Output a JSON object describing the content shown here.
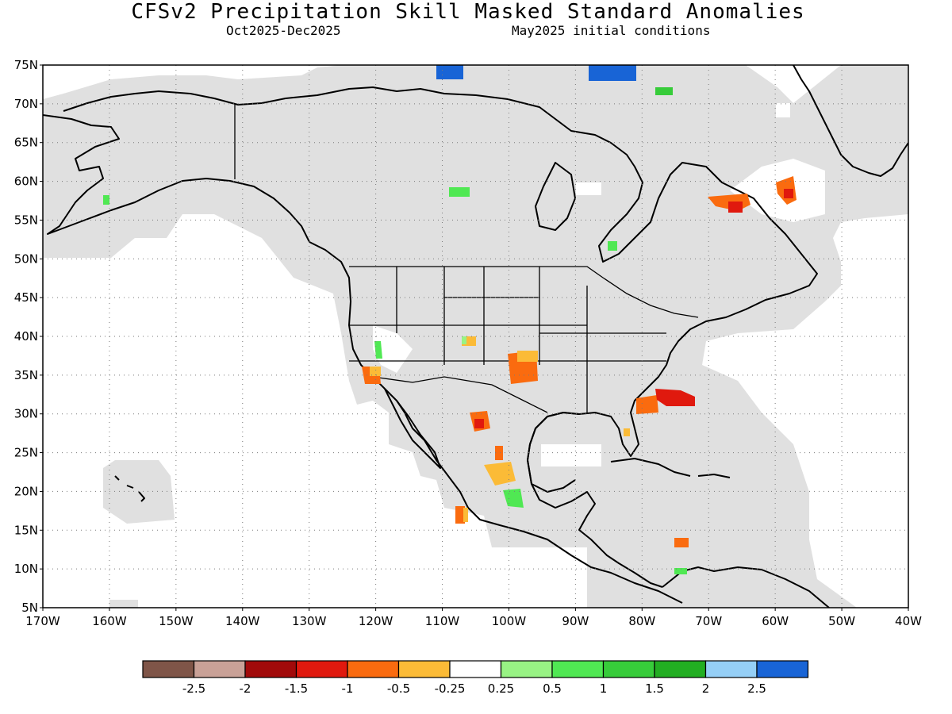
{
  "header": {
    "title": "CFSv2 Precipitation Skill Masked Standard Anomalies",
    "period": "Oct2025-Dec2025",
    "init": "May2025 initial conditions"
  },
  "axes": {
    "lat_labels": [
      "75N",
      "70N",
      "65N",
      "60N",
      "55N",
      "50N",
      "45N",
      "40N",
      "35N",
      "30N",
      "25N",
      "20N",
      "15N",
      "10N",
      "5N"
    ],
    "lon_labels": [
      "170W",
      "160W",
      "150W",
      "140W",
      "130W",
      "120W",
      "110W",
      "100W",
      "90W",
      "80W",
      "70W",
      "60W",
      "50W",
      "40W"
    ]
  },
  "colorbar": {
    "bins": [
      {
        "color": "#7f5548",
        "value": "< -2.5"
      },
      {
        "color": "#c9a197",
        "value": "-2.5 to -2"
      },
      {
        "color": "#a10a0a",
        "value": "-2 to -1.5"
      },
      {
        "color": "#e0190e",
        "value": "-1.5 to -1"
      },
      {
        "color": "#fa6b0f",
        "value": "-1 to -0.5"
      },
      {
        "color": "#fbbb37",
        "value": "-0.5 to -0.25"
      },
      {
        "color": "#ffffff",
        "value": "-0.25 to 0.25"
      },
      {
        "color": "#98f384",
        "value": "0.25 to 0.5"
      },
      {
        "color": "#50e853",
        "value": "0.5 to 1"
      },
      {
        "color": "#37cc3a",
        "value": "1 to 1.5"
      },
      {
        "color": "#22ae22",
        "value": "1.5 to 2"
      },
      {
        "color": "#95cff6",
        "value": "2 to 2.5"
      },
      {
        "color": "#1864d6",
        "value": "> 2.5"
      }
    ],
    "labels": [
      "-2.5",
      "-2",
      "-1.5",
      "-1",
      "-0.5",
      "-0.25",
      "0.25",
      "0.5",
      "1",
      "1.5",
      "2",
      "2.5"
    ]
  },
  "map": {
    "mask_color": "#e0e0e0",
    "anomaly_patches": [
      {
        "region": "Gulf Stream off Carolinas",
        "value": -1.5
      },
      {
        "region": "Southern Plains",
        "value": -1
      },
      {
        "region": "Northern Mexico Sierra Madre",
        "value": -1.5
      },
      {
        "region": "Central Mexico",
        "value": -0.25
      },
      {
        "region": "Southern California coast",
        "value": -0.5
      },
      {
        "region": "Labrador coast",
        "value": -1
      },
      {
        "region": "Southern Greenland",
        "value": -1
      },
      {
        "region": "Canadian Arctic islands",
        "value": 2.5
      },
      {
        "region": "Hudson Bay east",
        "value": 0.5
      },
      {
        "region": "Colombia coast",
        "value": -0.5
      }
    ]
  }
}
